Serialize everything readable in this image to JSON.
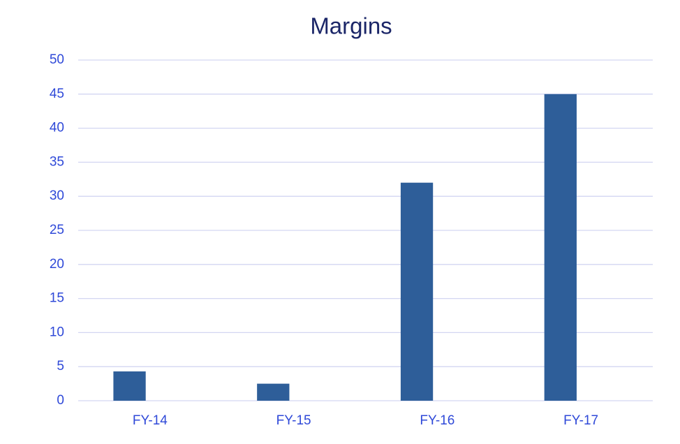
{
  "chart_data": {
    "type": "bar",
    "title": "Margins",
    "categories": [
      "FY-14",
      "FY-15",
      "FY-16",
      "FY-17"
    ],
    "values": [
      4.3,
      2.5,
      32,
      45
    ],
    "color": "#2e5e99",
    "ylim": [
      0,
      50
    ],
    "yticks": [
      0,
      5,
      10,
      15,
      20,
      25,
      30,
      35,
      40,
      45,
      50
    ],
    "grid": true
  }
}
